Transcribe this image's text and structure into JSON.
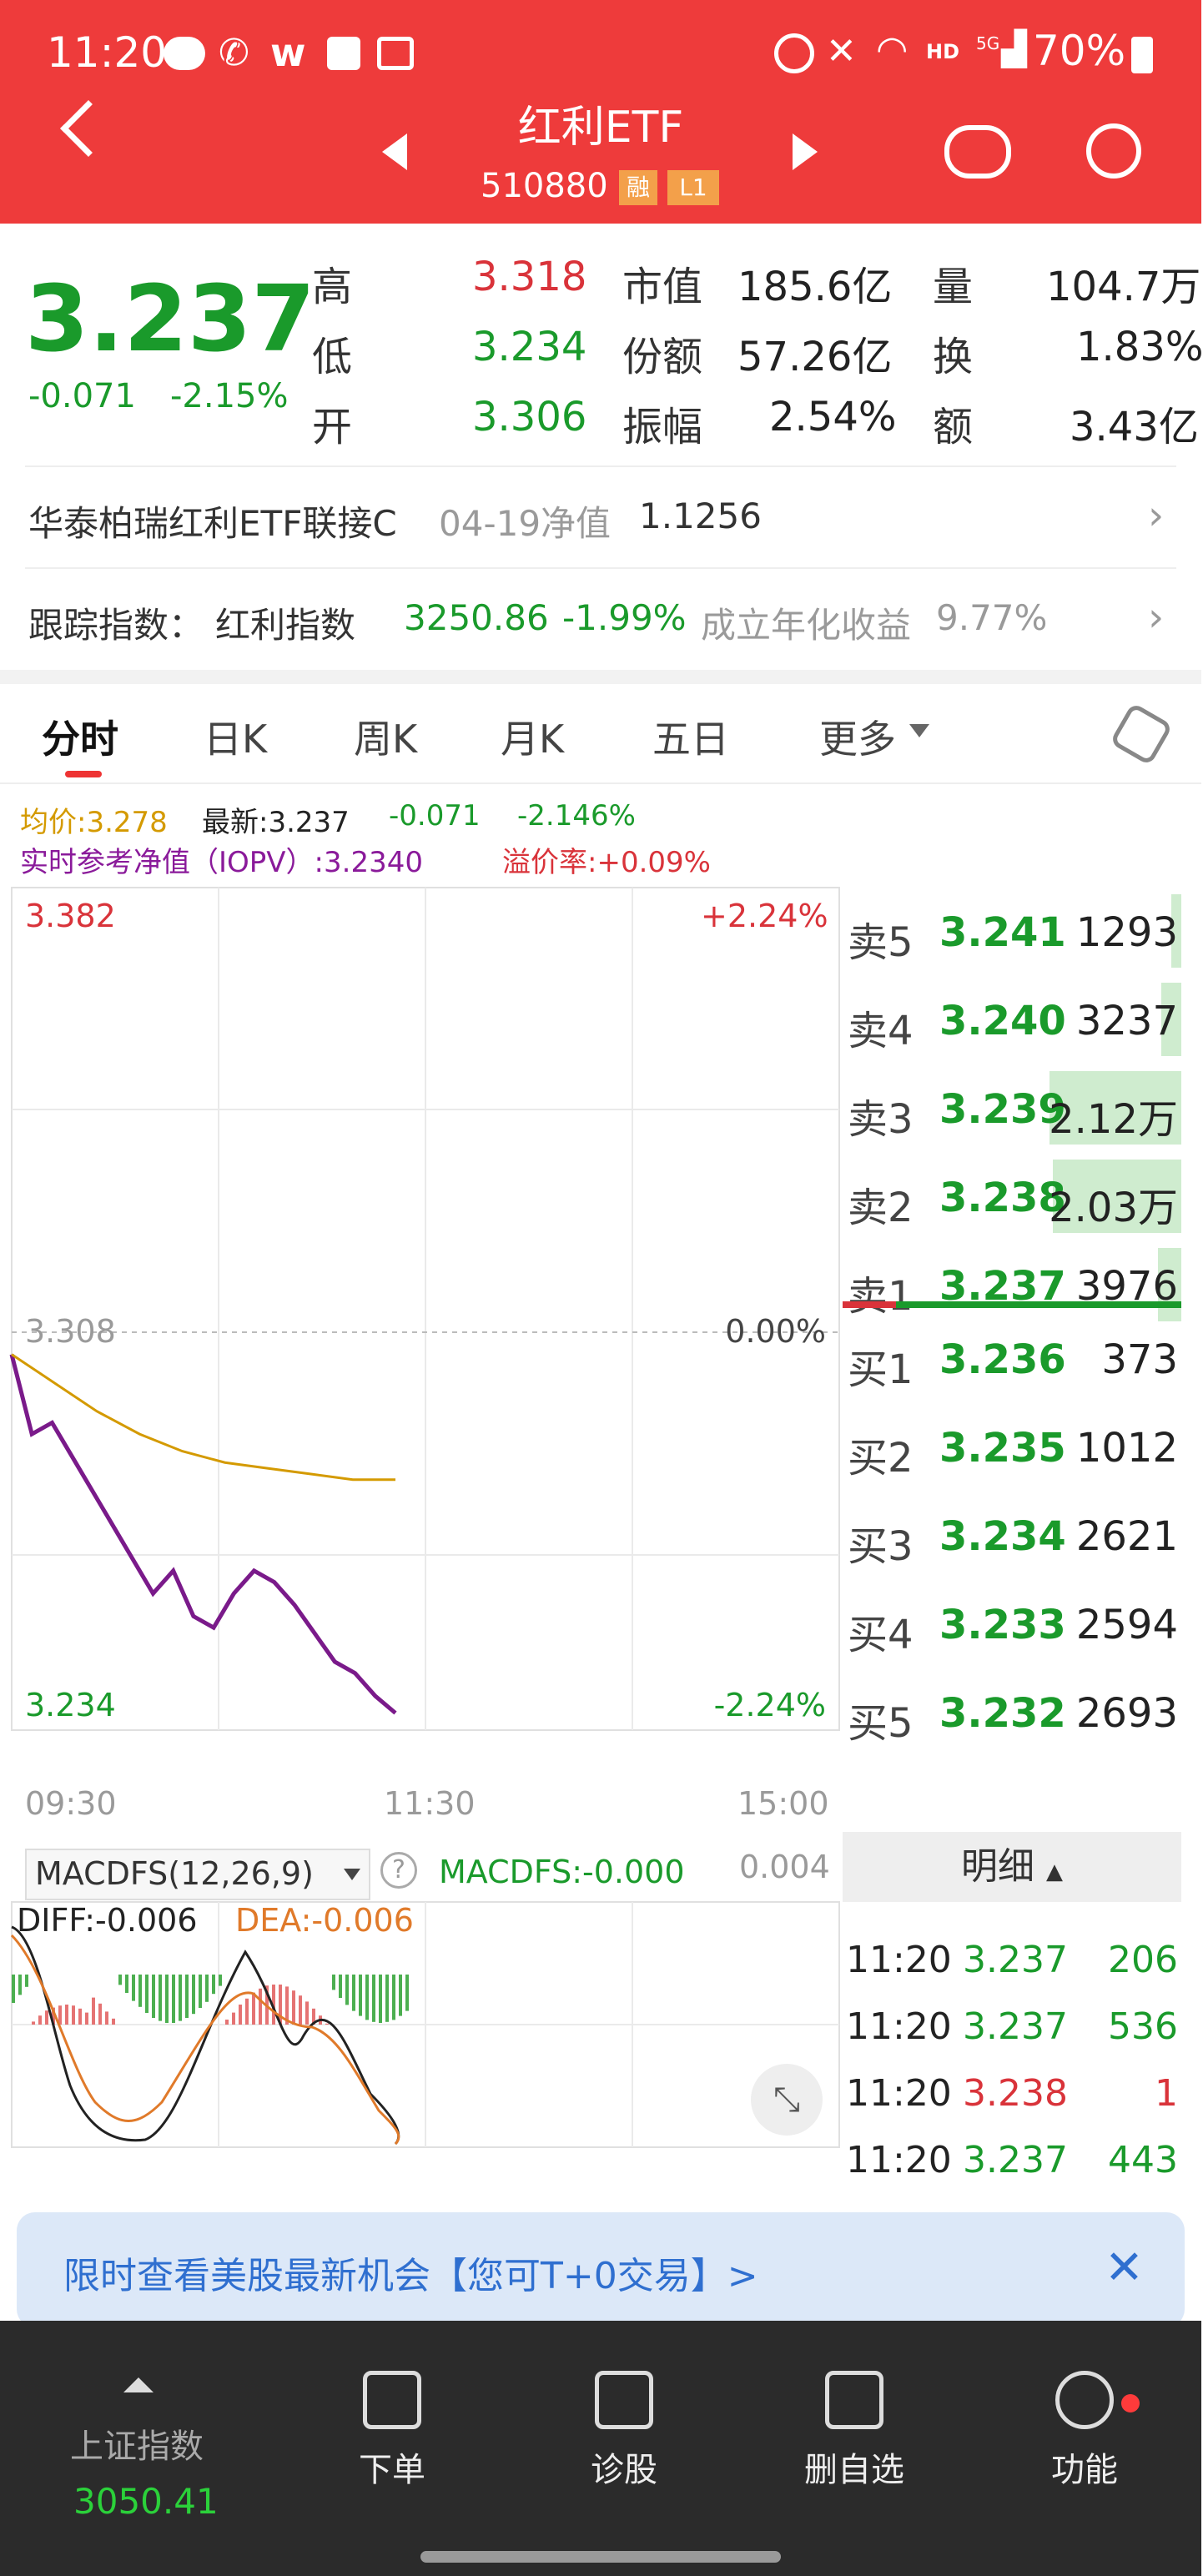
{
  "status_bar": {
    "time": "11:20",
    "notif_w": "w",
    "network_hd": "HD",
    "network_5g": "5G",
    "battery": "70%"
  },
  "header": {
    "title": "红利ETF",
    "code": "510880",
    "badge_margin": "融",
    "badge_level": "L1"
  },
  "quote": {
    "price": "3.237",
    "change": "-0.071",
    "change_pct": "-2.15%",
    "high_label": "高",
    "high": "3.318",
    "low_label": "低",
    "low": "3.234",
    "open_label": "开",
    "open": "3.306",
    "mktcap_label": "市值",
    "mktcap": "185.6亿",
    "shares_label": "份额",
    "shares": "57.26亿",
    "amp_label": "振幅",
    "amp": "2.54%",
    "vol_label": "量",
    "vol": "104.7万",
    "turnover_label": "换",
    "turnover": "1.83%",
    "amount_label": "额",
    "amount": "3.43亿"
  },
  "fund_row": {
    "name": "华泰柏瑞红利ETF联接C",
    "date_label": "04-19净值",
    "nav": "1.1256"
  },
  "index_row": {
    "label": "跟踪指数：",
    "name": "红利指数",
    "value": "3250.86",
    "pct": "-1.99%",
    "annual_label": "成立年化收益",
    "annual": "9.77%"
  },
  "tabs": [
    "分时",
    "日K",
    "周K",
    "月K",
    "五日",
    "更多"
  ],
  "chart_info": {
    "avg": "均价:3.278",
    "latest": "最新:3.237",
    "chg": "-0.071",
    "chg_pct": "-2.146%",
    "iopv": "实时参考净值（IOPV）:3.2340",
    "premium": "溢价率:+0.09%"
  },
  "chart_data": {
    "type": "line",
    "y_top": "3.382",
    "y_mid": "3.308",
    "y_bottom": "3.234",
    "pct_top": "+2.24%",
    "pct_mid": "0.00%",
    "pct_bottom": "-2.24%",
    "ylim": [
      3.234,
      3.382
    ],
    "x_ticks": [
      "09:30",
      "11:30",
      "15:00"
    ],
    "series": [
      {
        "values": [
          3.3,
          3.286,
          3.288,
          3.282,
          3.276,
          3.27,
          3.264,
          3.258,
          3.262,
          3.254,
          3.252,
          3.258,
          3.262,
          3.26,
          3.256,
          3.251,
          3.246,
          3.244,
          3.24,
          3.237
        ]
      },
      {
        "values": [
          3.3,
          3.295,
          3.29,
          3.286,
          3.283,
          3.281,
          3.28,
          3.279,
          3.278,
          3.278
        ]
      }
    ]
  },
  "macd": {
    "title": "MACDFS(12,26,9)",
    "value": "MACDFS:-0.000",
    "scale": "0.004",
    "diff": "DIFF:-0.006",
    "dea": "DEA:-0.006"
  },
  "order_book": {
    "sell": [
      {
        "label": "卖5",
        "price": "3.241",
        "vol": "1293",
        "fill": 0.02
      },
      {
        "label": "卖4",
        "price": "3.240",
        "vol": "3237",
        "fill": 0.06
      },
      {
        "label": "卖3",
        "price": "3.239",
        "vol": "2.12万",
        "fill": 0.39
      },
      {
        "label": "卖2",
        "price": "3.238",
        "vol": "2.03万",
        "fill": 0.38
      },
      {
        "label": "卖1",
        "price": "3.237",
        "vol": "3976",
        "fill": 0.07
      }
    ],
    "buy": [
      {
        "label": "买1",
        "price": "3.236",
        "vol": "373"
      },
      {
        "label": "买2",
        "price": "3.235",
        "vol": "1012"
      },
      {
        "label": "买3",
        "price": "3.234",
        "vol": "2621"
      },
      {
        "label": "买4",
        "price": "3.233",
        "vol": "2594"
      },
      {
        "label": "买5",
        "price": "3.232",
        "vol": "2693"
      }
    ],
    "detail_label": "明细",
    "ticks": [
      {
        "time": "11:20",
        "price": "3.237",
        "vol": "206"
      },
      {
        "time": "11:20",
        "price": "3.237",
        "vol": "536"
      },
      {
        "time": "11:20",
        "price": "3.238",
        "vol": "1"
      },
      {
        "time": "11:20",
        "price": "3.237",
        "vol": "443"
      }
    ]
  },
  "banner": {
    "text": "限时查看美股最新机会【您可T+0交易】>"
  },
  "bottom_nav": {
    "index_name": "上证指数",
    "index_value": "3050.41",
    "order": "下单",
    "diagnose": "诊股",
    "remove": "删自选",
    "functions": "功能"
  }
}
